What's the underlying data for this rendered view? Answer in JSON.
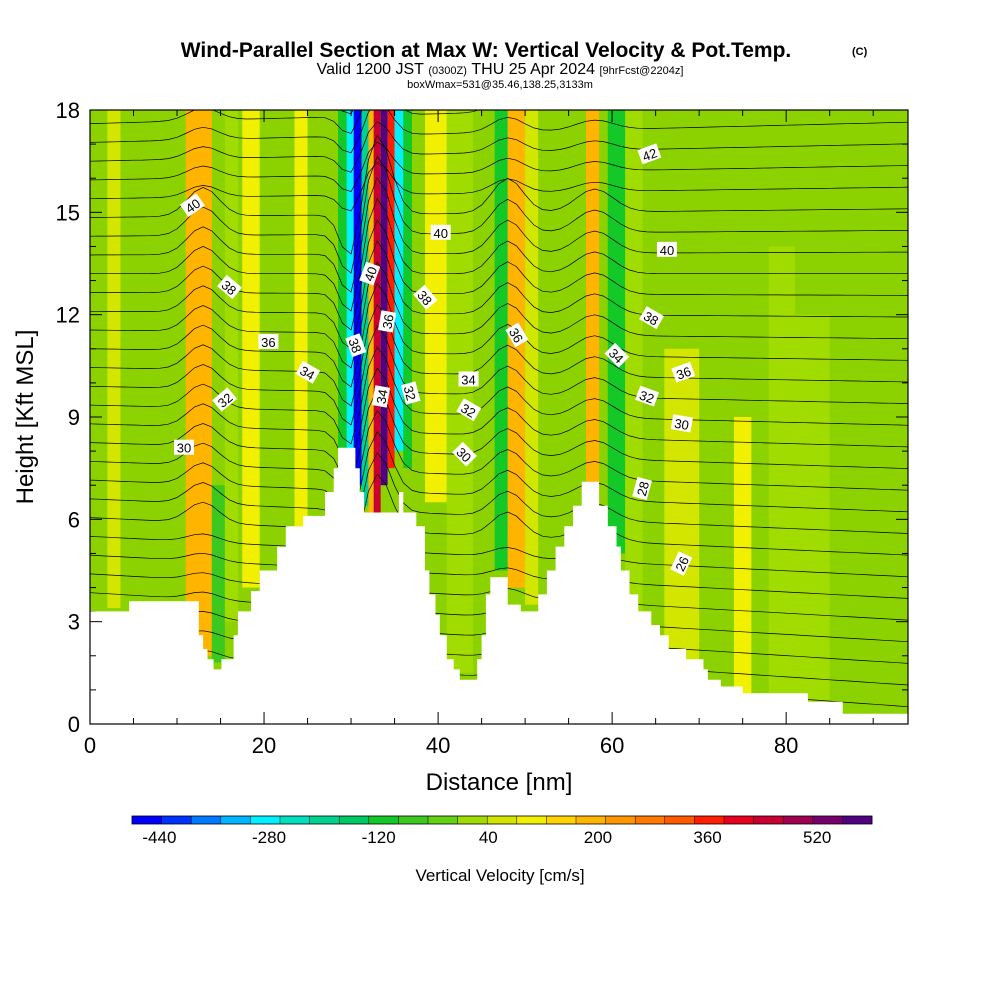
{
  "title": {
    "main": "Wind-Parallel Section at Max W: Vertical Velocity & Pot.Temp.",
    "main_suffix": "(C)",
    "valid_prefix": "Valid 1200 JST",
    "valid_zulu": "(0300Z)",
    "valid_date": "THU 25 Apr 2024",
    "forecast": "[9hrFcst@2204z]",
    "box_info": "boxWmax=531@35.46,138.25,3133m"
  },
  "chart_data": {
    "type": "heatmap",
    "xlabel": "Distance [nm]",
    "ylabel": "Height [Kft MSL]",
    "xlim": [
      0,
      94
    ],
    "ylim": [
      0,
      18
    ],
    "x_ticks": [
      0,
      20,
      40,
      60,
      80
    ],
    "y_ticks": [
      0,
      3,
      6,
      9,
      12,
      15,
      18
    ],
    "x_minor_step": 5,
    "y_minor_step": 1,
    "grid": false,
    "colorbar": {
      "title": "Vertical Velocity [cm/s]",
      "min": -480,
      "max": 600,
      "tick_labels": [
        "-440",
        "-280",
        "-120",
        "40",
        "200",
        "360",
        "520"
      ],
      "tick_values": [
        -440,
        -280,
        -120,
        40,
        200,
        360,
        520
      ],
      "colors": [
        "#0000ff",
        "#0032ff",
        "#0078ff",
        "#00b4ff",
        "#00f0ff",
        "#00e0c0",
        "#00d290",
        "#00c864",
        "#14c828",
        "#3cc81e",
        "#64d214",
        "#a0dc00",
        "#d2e600",
        "#f0f000",
        "#ffd200",
        "#ffb400",
        "#ff9600",
        "#ff7800",
        "#ff5a00",
        "#ff1e00",
        "#e6001e",
        "#c80032",
        "#a00050",
        "#78006e",
        "#500082"
      ]
    },
    "background_fill": "#8cd200",
    "vertical_velocity_bands": [
      {
        "x": [
          2,
          3.5
        ],
        "y": [
          3.4,
          18
        ],
        "w": 40
      },
      {
        "x": [
          11,
          14
        ],
        "y": [
          2,
          18
        ],
        "w": 200
      },
      {
        "x": [
          14,
          15.5
        ],
        "y": [
          1.8,
          7
        ],
        "w": -80
      },
      {
        "x": [
          15.5,
          17
        ],
        "y": [
          3,
          18
        ],
        "w": 0
      },
      {
        "x": [
          17.5,
          19.5
        ],
        "y": [
          4,
          18
        ],
        "w": 120
      },
      {
        "x": [
          23.5,
          25
        ],
        "y": [
          5.8,
          18
        ],
        "w": 120
      },
      {
        "x": [
          28.5,
          29.5
        ],
        "y": [
          7.5,
          18
        ],
        "w": -120
      },
      {
        "x": [
          29.5,
          30.3
        ],
        "y": [
          7.8,
          18
        ],
        "w": -280
      },
      {
        "x": [
          30.3,
          31.2
        ],
        "y": [
          7,
          18
        ],
        "w": -440
      },
      {
        "x": [
          31.2,
          32
        ],
        "y": [
          6.4,
          18
        ],
        "w": -200
      },
      {
        "x": [
          32,
          32.6
        ],
        "y": [
          6.2,
          18
        ],
        "w": 200
      },
      {
        "x": [
          32.6,
          33.4
        ],
        "y": [
          6.2,
          18
        ],
        "w": 440
      },
      {
        "x": [
          33.4,
          34.2
        ],
        "y": [
          7,
          18
        ],
        "w": 560
      },
      {
        "x": [
          34.2,
          35
        ],
        "y": [
          7.5,
          18
        ],
        "w": 360
      },
      {
        "x": [
          35,
          36
        ],
        "y": [
          8,
          18
        ],
        "w": -280
      },
      {
        "x": [
          36,
          37
        ],
        "y": [
          7.5,
          18
        ],
        "w": -120
      },
      {
        "x": [
          38.5,
          41
        ],
        "y": [
          6.5,
          18
        ],
        "w": 120
      },
      {
        "x": [
          41,
          44
        ],
        "y": [
          1.5,
          18
        ],
        "w": 0
      },
      {
        "x": [
          46.5,
          48
        ],
        "y": [
          4.5,
          18
        ],
        "w": -120
      },
      {
        "x": [
          48,
          50
        ],
        "y": [
          4,
          18
        ],
        "w": 200
      },
      {
        "x": [
          50,
          51.5
        ],
        "y": [
          3.5,
          18
        ],
        "w": 40
      },
      {
        "x": [
          57,
          58.5
        ],
        "y": [
          7,
          18
        ],
        "w": 200
      },
      {
        "x": [
          59.5,
          61.5
        ],
        "y": [
          5,
          18
        ],
        "w": -120
      },
      {
        "x": [
          61.5,
          63.5
        ],
        "y": [
          3,
          18
        ],
        "w": 0
      },
      {
        "x": [
          66,
          70
        ],
        "y": [
          1,
          11
        ],
        "w": 40
      },
      {
        "x": [
          74,
          76
        ],
        "y": [
          0.8,
          9
        ],
        "w": 120
      },
      {
        "x": [
          78,
          81
        ],
        "y": [
          0.8,
          14
        ],
        "w": 0
      },
      {
        "x": [
          81,
          85
        ],
        "y": [
          0.5,
          12
        ],
        "w": 0
      }
    ],
    "terrain": [
      [
        0,
        3.3
      ],
      [
        4.5,
        3.3
      ],
      [
        4.5,
        3.6
      ],
      [
        12.5,
        3.6
      ],
      [
        12.5,
        2.6
      ],
      [
        13,
        2.6
      ],
      [
        13,
        2.2
      ],
      [
        13.5,
        2.2
      ],
      [
        13.5,
        1.9
      ],
      [
        14.2,
        1.9
      ],
      [
        14.2,
        1.6
      ],
      [
        15.1,
        1.6
      ],
      [
        15.1,
        1.9
      ],
      [
        16.5,
        1.9
      ],
      [
        16.5,
        2.6
      ],
      [
        17,
        2.6
      ],
      [
        17,
        3.3
      ],
      [
        18.5,
        3.3
      ],
      [
        18.5,
        3.9
      ],
      [
        19.5,
        3.9
      ],
      [
        19.5,
        4.5
      ],
      [
        21.5,
        4.5
      ],
      [
        21.5,
        5.2
      ],
      [
        22.5,
        5.2
      ],
      [
        22.5,
        5.8
      ],
      [
        24.5,
        5.8
      ],
      [
        24.5,
        6.1
      ],
      [
        27,
        6.1
      ],
      [
        27,
        6.8
      ],
      [
        28,
        6.8
      ],
      [
        28,
        7.5
      ],
      [
        28.5,
        7.5
      ],
      [
        28.5,
        8.1
      ],
      [
        30.5,
        8.1
      ],
      [
        30.5,
        7.5
      ],
      [
        31,
        7.5
      ],
      [
        31,
        6.8
      ],
      [
        31.5,
        6.8
      ],
      [
        31.5,
        6.2
      ],
      [
        35.5,
        6.2
      ],
      [
        35.5,
        6.8
      ],
      [
        36,
        6.8
      ],
      [
        36,
        6.2
      ],
      [
        37.5,
        6.2
      ],
      [
        37.5,
        5.8
      ],
      [
        38.5,
        5.8
      ],
      [
        38.5,
        4.5
      ],
      [
        39,
        4.5
      ],
      [
        39,
        3.8
      ],
      [
        39.7,
        3.8
      ],
      [
        39.7,
        3.2
      ],
      [
        40.2,
        3.2
      ],
      [
        40.2,
        2.6
      ],
      [
        41,
        2.6
      ],
      [
        41,
        1.9
      ],
      [
        41.8,
        1.9
      ],
      [
        41.8,
        1.6
      ],
      [
        42.5,
        1.6
      ],
      [
        42.5,
        1.3
      ],
      [
        44.5,
        1.3
      ],
      [
        44.5,
        1.9
      ],
      [
        45,
        1.9
      ],
      [
        45,
        2.6
      ],
      [
        45.5,
        2.6
      ],
      [
        45.5,
        3.8
      ],
      [
        46,
        3.8
      ],
      [
        46,
        4.3
      ],
      [
        48,
        4.3
      ],
      [
        48,
        3.5
      ],
      [
        49.5,
        3.5
      ],
      [
        49.5,
        3.3
      ],
      [
        51.5,
        3.3
      ],
      [
        51.5,
        3.8
      ],
      [
        52.5,
        3.8
      ],
      [
        52.5,
        4.5
      ],
      [
        53.5,
        4.5
      ],
      [
        53.5,
        5.2
      ],
      [
        54.5,
        5.2
      ],
      [
        54.5,
        5.8
      ],
      [
        55.5,
        5.8
      ],
      [
        55.5,
        6.4
      ],
      [
        56.5,
        6.4
      ],
      [
        56.5,
        7.1
      ],
      [
        58.5,
        7.1
      ],
      [
        58.5,
        6.4
      ],
      [
        59.5,
        6.4
      ],
      [
        59.5,
        5.8
      ],
      [
        60.5,
        5.8
      ],
      [
        60.5,
        5.2
      ],
      [
        61,
        5.2
      ],
      [
        61,
        4.5
      ],
      [
        62,
        4.5
      ],
      [
        62,
        3.8
      ],
      [
        63,
        3.8
      ],
      [
        63,
        3.3
      ],
      [
        64.5,
        3.3
      ],
      [
        64.5,
        2.9
      ],
      [
        65.5,
        2.9
      ],
      [
        65.5,
        2.6
      ],
      [
        66.5,
        2.6
      ],
      [
        66.5,
        2.2
      ],
      [
        68.5,
        2.2
      ],
      [
        68.5,
        1.9
      ],
      [
        70.5,
        1.9
      ],
      [
        70.5,
        1.6
      ],
      [
        71,
        1.6
      ],
      [
        71,
        1.3
      ],
      [
        72.5,
        1.3
      ],
      [
        72.5,
        1.1
      ],
      [
        75,
        1.1
      ],
      [
        75,
        0.9
      ],
      [
        82.5,
        0.9
      ],
      [
        82.5,
        0.65
      ],
      [
        86.5,
        0.65
      ],
      [
        86.5,
        0.3
      ],
      [
        94,
        0.3
      ],
      [
        94,
        0
      ],
      [
        0,
        0
      ]
    ],
    "theta_contour_labels": [
      {
        "text": "40",
        "x": 11.8,
        "y": 15.2,
        "angle": -35
      },
      {
        "text": "38",
        "x": 16,
        "y": 12.8,
        "angle": 40
      },
      {
        "text": "36",
        "x": 20.5,
        "y": 11.2,
        "angle": 0
      },
      {
        "text": "34",
        "x": 25,
        "y": 10.3,
        "angle": 30
      },
      {
        "text": "32",
        "x": 15.5,
        "y": 9.5,
        "angle": -40
      },
      {
        "text": "30",
        "x": 10.8,
        "y": 8.1,
        "angle": 0
      },
      {
        "text": "38",
        "x": 30.5,
        "y": 11.1,
        "angle": 70
      },
      {
        "text": "40",
        "x": 32.2,
        "y": 13.2,
        "angle": -70
      },
      {
        "text": "36",
        "x": 34.2,
        "y": 11.8,
        "angle": -80
      },
      {
        "text": "34",
        "x": 33.5,
        "y": 9.6,
        "angle": -80
      },
      {
        "text": "32",
        "x": 36.8,
        "y": 9.7,
        "angle": 75
      },
      {
        "text": "38",
        "x": 38.5,
        "y": 12.5,
        "angle": 50
      },
      {
        "text": "40",
        "x": 40.3,
        "y": 14.4,
        "angle": 0
      },
      {
        "text": "34",
        "x": 43.5,
        "y": 10.1,
        "angle": 0
      },
      {
        "text": "32",
        "x": 43.5,
        "y": 9.2,
        "angle": 30
      },
      {
        "text": "30",
        "x": 43,
        "y": 7.9,
        "angle": 45
      },
      {
        "text": "36",
        "x": 49,
        "y": 11.4,
        "angle": 60
      },
      {
        "text": "42",
        "x": 64.3,
        "y": 16.7,
        "angle": -20
      },
      {
        "text": "40",
        "x": 66.3,
        "y": 13.9,
        "angle": 0
      },
      {
        "text": "38",
        "x": 64.5,
        "y": 11.9,
        "angle": 30
      },
      {
        "text": "34",
        "x": 60.5,
        "y": 10.8,
        "angle": 45
      },
      {
        "text": "36",
        "x": 68.2,
        "y": 10.3,
        "angle": -20
      },
      {
        "text": "32",
        "x": 64,
        "y": 9.6,
        "angle": 20
      },
      {
        "text": "30",
        "x": 68,
        "y": 8.8,
        "angle": 10
      },
      {
        "text": "28",
        "x": 63.5,
        "y": 6.9,
        "angle": -75
      },
      {
        "text": "26",
        "x": 68,
        "y": 4.7,
        "angle": -65
      }
    ]
  }
}
